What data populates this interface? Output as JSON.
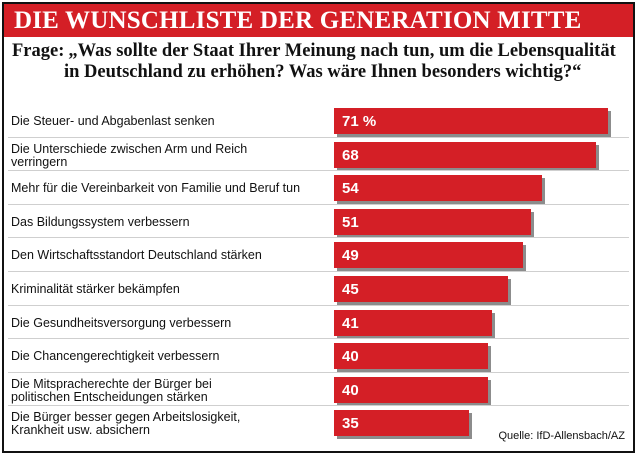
{
  "chart_data": {
    "type": "bar",
    "orientation": "horizontal",
    "title": "DIE WUNSCHLISTE DER GENERATION MITTE",
    "question_label": "Frage:",
    "question_line1": "„Was sollte der Staat Ihrer Meinung nach tun, um die Lebensqualität",
    "question_line2": "in Deutschland zu erhöhen? Was wäre Ihnen besonders wichtig?“",
    "categories": [
      [
        "Die Steuer- und Abgabenlast senken"
      ],
      [
        "Die Unterschiede zwischen Arm und Reich",
        "verringern"
      ],
      [
        "Mehr für die Vereinbarkeit von Familie und Beruf tun"
      ],
      [
        "Das Bildungssystem verbessern"
      ],
      [
        "Den Wirtschaftsstandort Deutschland stärken"
      ],
      [
        "Kriminalität stärker bekämpfen"
      ],
      [
        "Die Gesundheitsversorgung verbessern"
      ],
      [
        "Die Chancengerechtigkeit verbessern"
      ],
      [
        "Die Mitspracherechte der Bürger bei",
        "politischen Entscheidungen stärken"
      ],
      [
        "Die Bürger besser gegen Arbeitslosigkeit,",
        "Krankheit usw. absichern"
      ]
    ],
    "values": [
      71,
      68,
      54,
      51,
      49,
      45,
      41,
      40,
      40,
      35
    ],
    "value_labels": [
      "71 %",
      "68",
      "54",
      "51",
      "49",
      "45",
      "41",
      "40",
      "40",
      "35"
    ],
    "bar_color": "#d41f26",
    "source": "Quelle: IfD-Allensbach/AZ"
  }
}
